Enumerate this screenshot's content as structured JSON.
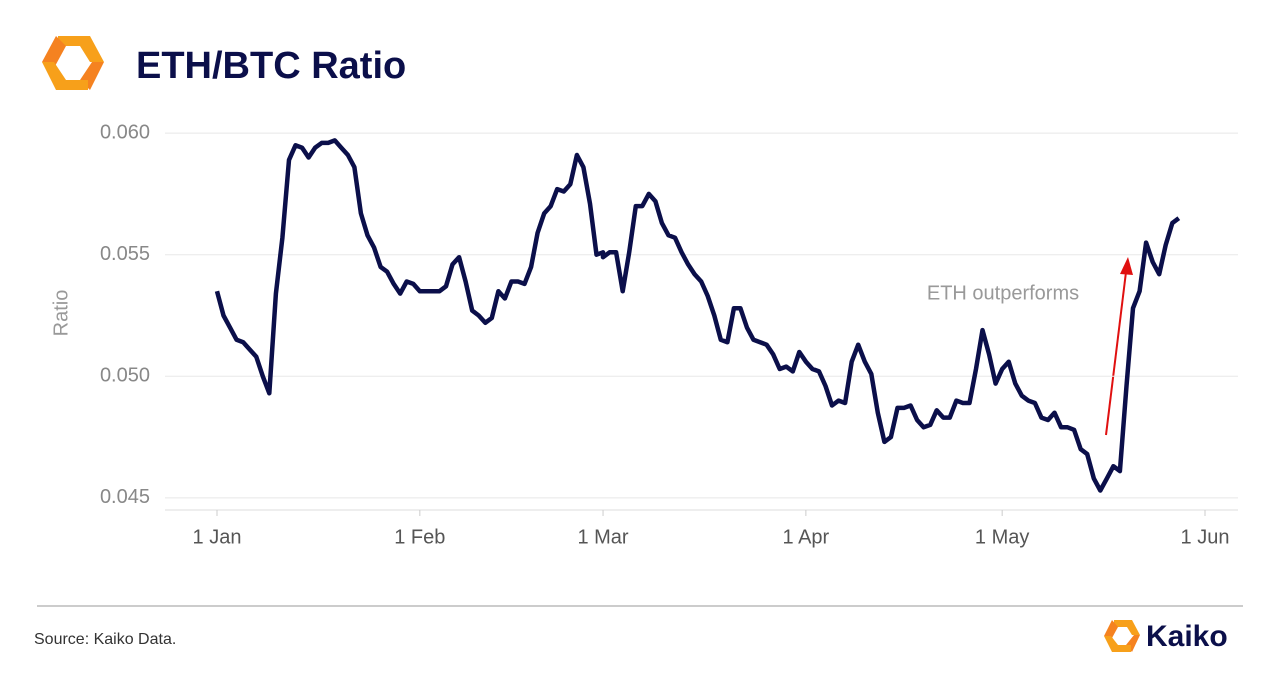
{
  "chart_data": {
    "type": "line",
    "title": "ETH/BTC Ratio",
    "y_label": "Ratio",
    "source": "Source: Kaiko Data.",
    "logo_text": "Kaiko",
    "annotation": "ETH outperforms",
    "x": [
      "1 Jan",
      "2 Jan",
      "3 Jan",
      "4 Jan",
      "5 Jan",
      "6 Jan",
      "7 Jan",
      "8 Jan",
      "9 Jan",
      "10 Jan",
      "11 Jan",
      "12 Jan",
      "13 Jan",
      "14 Jan",
      "15 Jan",
      "16 Jan",
      "17 Jan",
      "18 Jan",
      "19 Jan",
      "20 Jan",
      "21 Jan",
      "22 Jan",
      "23 Jan",
      "24 Jan",
      "25 Jan",
      "26 Jan",
      "27 Jan",
      "28 Jan",
      "29 Jan",
      "30 Jan",
      "31 Jan",
      "1 Feb",
      "2 Feb",
      "3 Feb",
      "4 Feb",
      "5 Feb",
      "6 Feb",
      "7 Feb",
      "8 Feb",
      "9 Feb",
      "10 Feb",
      "11 Feb",
      "12 Feb",
      "13 Feb",
      "14 Feb",
      "15 Feb",
      "16 Feb",
      "17 Feb",
      "18 Feb",
      "19 Feb",
      "20 Feb",
      "21 Feb",
      "22 Feb",
      "23 Feb",
      "24 Feb",
      "25 Feb",
      "26 Feb",
      "27 Feb",
      "28 Feb",
      "29 Feb",
      "1 Mar",
      "2 Mar",
      "3 Mar",
      "4 Mar",
      "5 Mar",
      "6 Mar",
      "7 Mar",
      "8 Mar",
      "9 Mar",
      "10 Mar",
      "11 Mar",
      "12 Mar",
      "13 Mar",
      "14 Mar",
      "15 Mar",
      "16 Mar",
      "17 Mar",
      "18 Mar",
      "19 Mar",
      "20 Mar",
      "21 Mar",
      "22 Mar",
      "23 Mar",
      "24 Mar",
      "25 Mar",
      "26 Mar",
      "27 Mar",
      "28 Mar",
      "29 Mar",
      "30 Mar",
      "31 Mar",
      "1 Apr",
      "2 Apr",
      "3 Apr",
      "4 Apr",
      "5 Apr",
      "6 Apr",
      "7 Apr",
      "8 Apr",
      "9 Apr",
      "10 Apr",
      "11 Apr",
      "12 Apr",
      "13 Apr",
      "14 Apr",
      "15 Apr",
      "16 Apr",
      "17 Apr",
      "18 Apr",
      "19 Apr",
      "20 Apr",
      "21 Apr",
      "22 Apr",
      "23 Apr",
      "24 Apr",
      "25 Apr",
      "26 Apr",
      "27 Apr",
      "28 Apr",
      "29 Apr",
      "30 Apr",
      "1 May",
      "2 May",
      "3 May",
      "4 May",
      "5 May",
      "6 May",
      "7 May",
      "8 May",
      "9 May",
      "10 May",
      "11 May",
      "12 May",
      "13 May",
      "14 May",
      "15 May",
      "16 May",
      "17 May",
      "18 May",
      "19 May",
      "20 May",
      "21 May",
      "22 May",
      "23 May",
      "24 May",
      "25 May",
      "26 May",
      "27 May",
      "28 May"
    ],
    "series": [
      {
        "name": "ETH/BTC",
        "color": "#0b0f4a",
        "values": [
          0.0535,
          0.0525,
          0.052,
          0.0515,
          0.0514,
          0.0511,
          0.0508,
          0.05,
          0.0493,
          0.0534,
          0.0557,
          0.0589,
          0.0595,
          0.0594,
          0.059,
          0.0594,
          0.0596,
          0.0596,
          0.0597,
          0.0594,
          0.0591,
          0.0586,
          0.0567,
          0.0558,
          0.0553,
          0.0545,
          0.0543,
          0.0538,
          0.0534,
          0.0539,
          0.0538,
          0.0535,
          0.0535,
          0.0535,
          0.0535,
          0.0537,
          0.0546,
          0.0549,
          0.0539,
          0.0527,
          0.0525,
          0.0522,
          0.0524,
          0.0535,
          0.0532,
          0.0539,
          0.0539,
          0.0538,
          0.0545,
          0.0559,
          0.0567,
          0.057,
          0.0577,
          0.0576,
          0.0579,
          0.0591,
          0.0586,
          0.0571,
          0.055,
          0.0551,
          0.0549,
          0.0551,
          0.0551,
          0.0535,
          0.0551,
          0.057,
          0.057,
          0.0575,
          0.0572,
          0.0563,
          0.0558,
          0.0557,
          0.0551,
          0.0546,
          0.0542,
          0.0539,
          0.0533,
          0.0525,
          0.0515,
          0.0514,
          0.0528,
          0.0528,
          0.052,
          0.0515,
          0.0514,
          0.0513,
          0.0509,
          0.0503,
          0.0504,
          0.0502,
          0.051,
          0.0506,
          0.0503,
          0.0502,
          0.0496,
          0.0488,
          0.049,
          0.0489,
          0.0506,
          0.0513,
          0.0506,
          0.0501,
          0.0485,
          0.0473,
          0.0475,
          0.0487,
          0.0487,
          0.0488,
          0.0482,
          0.0479,
          0.048,
          0.0486,
          0.0483,
          0.0483,
          0.049,
          0.0489,
          0.0489,
          0.0503,
          0.0519,
          0.0509,
          0.0497,
          0.0503,
          0.0506,
          0.0497,
          0.0492,
          0.049,
          0.0489,
          0.0483,
          0.0482,
          0.0485,
          0.0479,
          0.0479,
          0.0478,
          0.047,
          0.0468,
          0.0458,
          0.0453,
          0.0458,
          0.0463,
          0.0461,
          0.0496,
          0.0528,
          0.0535,
          0.0555,
          0.0547,
          0.0542,
          0.0554,
          0.0563,
          0.0565
        ]
      }
    ],
    "ylim": [
      0.0445,
      0.0605
    ],
    "yticks": [
      {
        "value": 0.06,
        "label": "0.060"
      },
      0.055,
      {
        "value": 0.05,
        "label": "0.050"
      },
      0.045
    ],
    "xticks": [
      "1 Jan",
      "1 Feb",
      "1 Mar",
      "1 Apr",
      "1 May",
      "1 Jun"
    ],
    "grid": true
  }
}
